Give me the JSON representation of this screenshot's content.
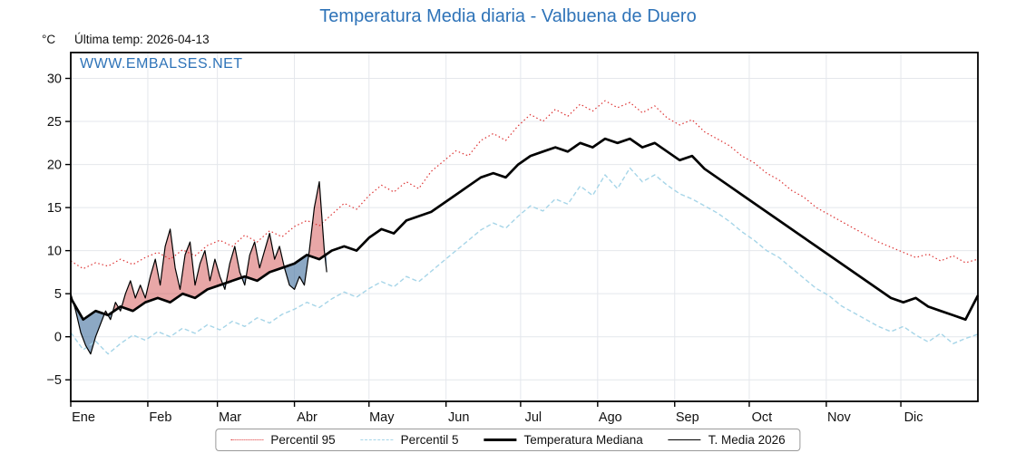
{
  "colors": {
    "accent_blue": "#2e73b8",
    "axis_black": "#111111"
  },
  "annotations": {
    "unit": "°C",
    "last_temp": "Última temp: 2026-04-13",
    "watermark": "WWW.EMBALSES.NET"
  },
  "chart_data": {
    "type": "line",
    "title": "Temperatura Media diaria - Valbuena de Duero",
    "xlabel": "",
    "ylabel": "°C",
    "months": [
      "Ene",
      "Feb",
      "Mar",
      "Abr",
      "May",
      "Jun",
      "Jul",
      "Ago",
      "Sep",
      "Oct",
      "Nov",
      "Dic"
    ],
    "month_start_days": [
      0,
      31,
      59,
      90,
      120,
      151,
      181,
      212,
      243,
      273,
      304,
      334
    ],
    "days_in_year": 365,
    "ylim": [
      -7.5,
      33.0
    ],
    "yticks": [
      -5,
      0,
      5,
      10,
      15,
      20,
      25,
      30
    ],
    "ytick_labels": [
      "−5",
      "0",
      "5",
      "10",
      "15",
      "20",
      "25",
      "30"
    ],
    "grid_on": true,
    "grid_color": "#e4e7ec",
    "fill_above_color": "rgba(205,60,60,0.45)",
    "fill_below_color": "rgba(70,115,160,0.62)",
    "legend_position": "bottom-center",
    "series": [
      {
        "id": "p95",
        "name": "Percentil 95",
        "style": "dotted",
        "color": "#dd3333",
        "step_days": 5,
        "values": [
          8.8,
          7.9,
          8.6,
          8.2,
          9.0,
          8.4,
          9.2,
          9.8,
          9.0,
          10.1,
          9.4,
          10.6,
          11.2,
          10.5,
          11.8,
          11.0,
          12.3,
          11.6,
          12.8,
          13.5,
          12.9,
          14.2,
          15.5,
          14.8,
          16.4,
          17.6,
          16.8,
          18.0,
          17.2,
          19.2,
          20.4,
          21.6,
          21.0,
          22.8,
          23.6,
          22.8,
          24.5,
          25.8,
          25.0,
          26.4,
          25.6,
          27.0,
          26.2,
          27.4,
          26.6,
          27.2,
          26.0,
          26.8,
          25.4,
          24.6,
          25.2,
          23.8,
          23.0,
          22.2,
          21.0,
          20.2,
          19.0,
          18.2,
          17.0,
          16.2,
          15.0,
          14.2,
          13.4,
          12.6,
          11.8,
          11.0,
          10.4,
          9.8,
          9.2,
          9.6,
          8.8,
          9.4,
          8.6,
          9.0
        ]
      },
      {
        "id": "p5",
        "name": "Percentil 5",
        "style": "dashed",
        "color": "#a6d5e8",
        "step_days": 5,
        "values": [
          0.5,
          -1.5,
          -0.5,
          -2.0,
          -0.8,
          0.2,
          -0.4,
          0.6,
          0.0,
          1.0,
          0.4,
          1.4,
          0.8,
          1.8,
          1.2,
          2.2,
          1.6,
          2.6,
          3.2,
          4.0,
          3.4,
          4.4,
          5.2,
          4.6,
          5.6,
          6.4,
          5.8,
          7.0,
          6.4,
          7.6,
          8.8,
          10.0,
          11.2,
          12.4,
          13.2,
          12.6,
          14.0,
          15.2,
          14.6,
          16.0,
          15.4,
          17.5,
          16.4,
          18.8,
          17.2,
          19.6,
          18.0,
          18.8,
          17.6,
          16.6,
          16.0,
          15.2,
          14.4,
          13.4,
          12.2,
          11.2,
          10.0,
          9.2,
          8.0,
          6.8,
          5.6,
          4.8,
          3.6,
          2.8,
          2.0,
          1.2,
          0.6,
          1.2,
          0.2,
          -0.6,
          0.4,
          -0.8,
          -0.2,
          0.3
        ]
      },
      {
        "id": "mediana",
        "name": "Temperatura Mediana",
        "style": "solid-thick",
        "color": "#000000",
        "step_days": 5,
        "values": [
          4.5,
          2.0,
          3.0,
          2.5,
          3.5,
          3.0,
          4.0,
          4.5,
          4.0,
          5.0,
          4.5,
          5.5,
          6.0,
          6.5,
          7.0,
          6.5,
          7.5,
          8.0,
          8.5,
          9.5,
          9.0,
          10.0,
          10.5,
          10.0,
          11.5,
          12.5,
          12.0,
          13.5,
          14.0,
          14.5,
          15.5,
          16.5,
          17.5,
          18.5,
          19.0,
          18.5,
          20.0,
          21.0,
          21.5,
          22.0,
          21.5,
          22.5,
          22.0,
          23.0,
          22.5,
          23.0,
          22.0,
          22.5,
          21.5,
          20.5,
          21.0,
          19.5,
          18.5,
          17.5,
          16.5,
          15.5,
          14.5,
          13.5,
          12.5,
          11.5,
          10.5,
          9.5,
          8.5,
          7.5,
          6.5,
          5.5,
          4.5,
          4.0,
          4.5,
          3.5,
          3.0,
          2.5,
          2.0,
          4.8
        ]
      },
      {
        "id": "t2026",
        "name": "T. Media 2026",
        "style": "solid-thin",
        "color": "#000000",
        "x_days": [
          0,
          2,
          4,
          6,
          8,
          10,
          12,
          14,
          16,
          18,
          20,
          22,
          24,
          26,
          28,
          30,
          32,
          34,
          36,
          38,
          40,
          42,
          44,
          46,
          48,
          50,
          52,
          54,
          56,
          58,
          60,
          62,
          64,
          66,
          68,
          70,
          72,
          74,
          76,
          78,
          80,
          82,
          84,
          86,
          88,
          90,
          92,
          94,
          96,
          98,
          100,
          102,
          103
        ],
        "values": [
          5.0,
          3.0,
          0.5,
          -1.0,
          -2.0,
          0.0,
          1.5,
          3.0,
          2.0,
          4.0,
          3.0,
          5.0,
          6.5,
          4.5,
          6.0,
          4.5,
          7.0,
          9.0,
          6.0,
          10.5,
          12.5,
          8.0,
          5.5,
          9.5,
          11.0,
          6.0,
          8.5,
          10.0,
          6.5,
          9.0,
          7.0,
          5.5,
          8.5,
          10.5,
          7.5,
          6.0,
          9.5,
          11.0,
          8.0,
          10.0,
          12.0,
          9.0,
          10.5,
          8.0,
          6.0,
          5.5,
          7.0,
          6.0,
          10.0,
          15.0,
          18.0,
          10.0,
          7.5
        ]
      }
    ]
  },
  "legend": {
    "items": [
      {
        "label": "Percentil 95"
      },
      {
        "label": "Percentil 5"
      },
      {
        "label": "Temperatura Mediana"
      },
      {
        "label": "T. Media 2026"
      }
    ]
  }
}
